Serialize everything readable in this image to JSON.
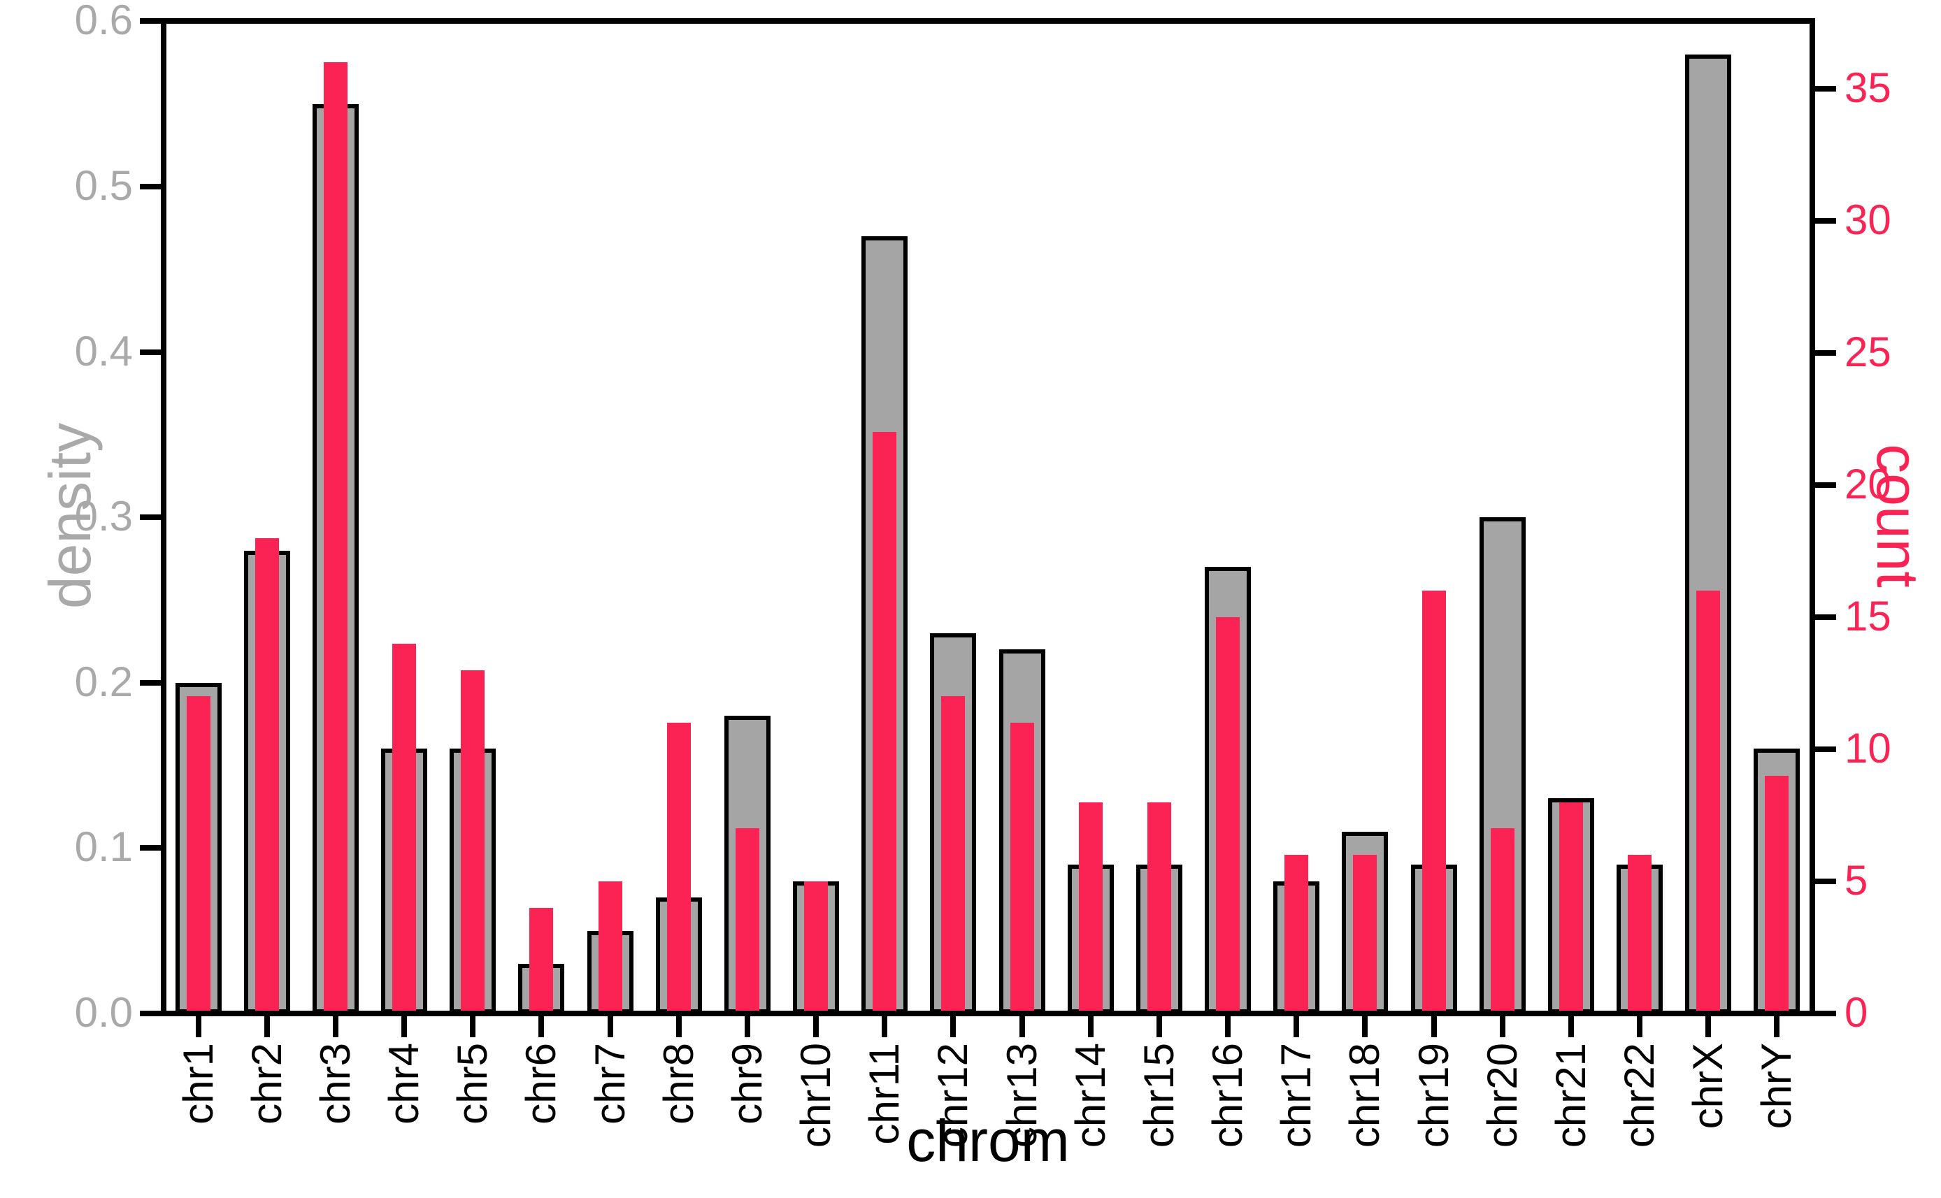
{
  "chart_data": {
    "type": "bar",
    "dual_axis": true,
    "title": "",
    "categories": [
      "chr1",
      "chr2",
      "chr3",
      "chr4",
      "chr5",
      "chr6",
      "chr7",
      "chr8",
      "chr9",
      "chr10",
      "chr11",
      "chr12",
      "chr13",
      "chr14",
      "chr15",
      "chr16",
      "chr17",
      "chr18",
      "chr19",
      "chr20",
      "chr21",
      "chr22",
      "chrX",
      "chrY"
    ],
    "series": [
      {
        "name": "density",
        "axis": "left",
        "type": "bar",
        "values": [
          0.2,
          0.28,
          0.55,
          0.16,
          0.16,
          0.03,
          0.05,
          0.07,
          0.18,
          0.08,
          0.47,
          0.23,
          0.22,
          0.09,
          0.09,
          0.27,
          0.08,
          0.11,
          0.09,
          0.3,
          0.13,
          0.09,
          0.58,
          0.16
        ]
      },
      {
        "name": "count",
        "axis": "right",
        "type": "bar",
        "values": [
          12,
          18,
          36,
          14,
          13,
          4,
          5,
          11,
          7,
          5,
          22,
          12,
          11,
          8,
          8,
          15,
          6,
          6,
          16,
          7,
          8,
          6,
          16,
          9
        ]
      }
    ],
    "left_axis": {
      "title": "density",
      "tick_labels": [
        "0.0",
        "0.1",
        "0.2",
        "0.3",
        "0.4",
        "0.5",
        "0.6"
      ],
      "range": [
        0,
        0.6
      ]
    },
    "right_axis": {
      "title": "count",
      "tick_labels": [
        "0",
        "5",
        "10",
        "15",
        "20",
        "25",
        "30",
        "35"
      ],
      "range": [
        0,
        37.5
      ]
    },
    "x_axis": {
      "title": "chrom"
    },
    "colors": {
      "density_bar": "#A5A5A5",
      "density_bar_border": "#000000",
      "density_text": "#A9A9A9",
      "count_bar": "#FB2353",
      "count_text": "#FB2353",
      "axis": "#000000",
      "background": "#FFFFFF"
    },
    "grid": false,
    "legend": "none"
  }
}
